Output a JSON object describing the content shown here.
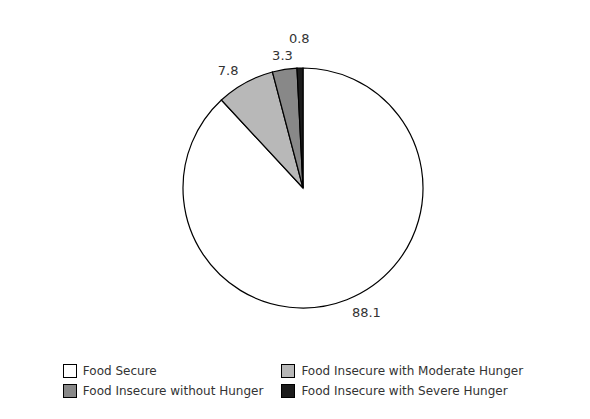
{
  "chart_data": {
    "type": "pie",
    "categories": [
      "Food Secure",
      "Food Insecure with Moderate Hunger",
      "Food Insecure without Hunger",
      "Food Insecure with Severe Hunger"
    ],
    "values": [
      88.1,
      7.8,
      3.3,
      0.8
    ],
    "colors": [
      "#ffffff",
      "#b8b8b8",
      "#888888",
      "#1c1c1c"
    ],
    "data_labels": true
  }
}
